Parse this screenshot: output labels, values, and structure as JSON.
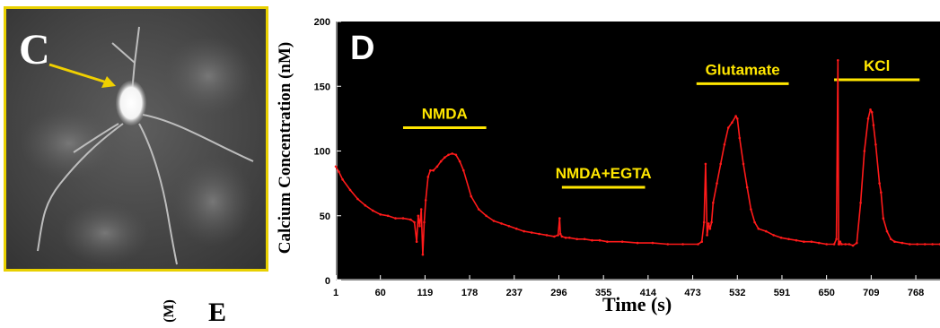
{
  "panel_c": {
    "letter": "C",
    "colors": {
      "border": "#e8d000",
      "arrow": "#f0d000",
      "soma": "#ffffff"
    }
  },
  "fragments": {
    "letter_e": "E",
    "rotated_unit": "(M)"
  },
  "chart_data": {
    "type": "line",
    "panel_letter": "D",
    "xlabel": "Time (s)",
    "ylabel": "Calcium Concentration (nM)",
    "xlim": [
      1,
      800
    ],
    "ylim": [
      0,
      200
    ],
    "yticks": [
      0,
      50,
      100,
      150,
      200
    ],
    "xticks": [
      1,
      60,
      119,
      178,
      237,
      296,
      355,
      414,
      473,
      532,
      591,
      650,
      709,
      768
    ],
    "grid": false,
    "colors": {
      "background": "#000000",
      "line": "#ff1a1a",
      "annotation": "#ffe600",
      "axes": "#ffffff"
    },
    "annotations": [
      {
        "text": "NMDA",
        "x_start": 90,
        "x_end": 200,
        "y": 118
      },
      {
        "text": "NMDA+EGTA",
        "x_start": 300,
        "x_end": 410,
        "y": 72
      },
      {
        "text": "Glutamate",
        "x_start": 478,
        "x_end": 600,
        "y": 152
      },
      {
        "text": "KCl",
        "x_start": 660,
        "x_end": 773,
        "y": 155
      }
    ],
    "series": [
      {
        "x": [
          1,
          5,
          10,
          20,
          30,
          40,
          50,
          60,
          70,
          80,
          90,
          100,
          105,
          108,
          110,
          112,
          114,
          116,
          118,
          120,
          123,
          126,
          130,
          135,
          140,
          145,
          150,
          155,
          160,
          165,
          170,
          180,
          190,
          200,
          210,
          220,
          230,
          240,
          250,
          260,
          270,
          280,
          290,
          295,
          297,
          298,
          300,
          305,
          310,
          320,
          330,
          340,
          350,
          360,
          380,
          400,
          420,
          440,
          460,
          480,
          485,
          488,
          490,
          492,
          494,
          496,
          498,
          500,
          505,
          510,
          515,
          520,
          525,
          530,
          532,
          535,
          540,
          545,
          550,
          555,
          560,
          570,
          580,
          590,
          600,
          610,
          620,
          630,
          640,
          650,
          660,
          663,
          665,
          666,
          667,
          668,
          670,
          675,
          680,
          685,
          690,
          695,
          700,
          705,
          708,
          710,
          712,
          715,
          720,
          722,
          725,
          730,
          735,
          740,
          750,
          760,
          770,
          780,
          790,
          800
        ],
        "y": [
          88,
          84,
          78,
          70,
          63,
          58,
          54,
          51,
          50,
          48,
          48,
          47,
          45,
          30,
          50,
          42,
          55,
          20,
          45,
          62,
          80,
          85,
          85,
          88,
          92,
          95,
          97,
          98,
          97,
          92,
          85,
          65,
          55,
          50,
          46,
          44,
          42,
          40,
          38,
          37,
          36,
          35,
          34,
          35,
          48,
          36,
          34,
          33,
          33,
          32,
          32,
          31,
          31,
          30,
          30,
          29,
          29,
          28,
          28,
          28,
          30,
          45,
          90,
          35,
          44,
          40,
          45,
          60,
          75,
          90,
          105,
          118,
          122,
          127,
          125,
          110,
          90,
          72,
          55,
          45,
          40,
          38,
          35,
          33,
          32,
          31,
          30,
          30,
          29,
          28,
          28,
          32,
          170,
          28,
          28,
          30,
          28,
          28,
          28,
          27,
          29,
          60,
          100,
          125,
          132,
          130,
          120,
          105,
          75,
          68,
          48,
          38,
          32,
          30,
          29,
          28,
          28,
          28,
          28,
          28
        ]
      }
    ]
  }
}
